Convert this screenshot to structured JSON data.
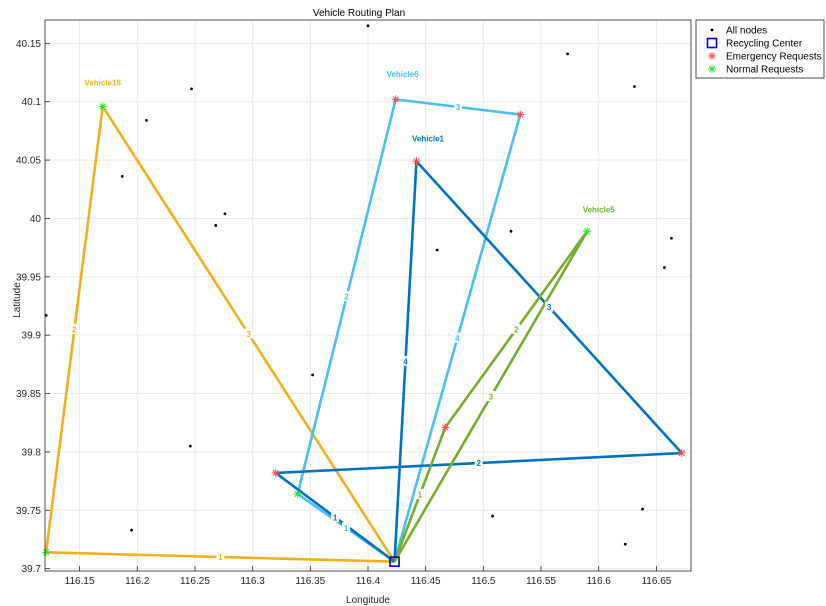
{
  "chart_data": {
    "type": "scatter",
    "title": "Vehicle Routing Plan",
    "xlabel": "Longitude",
    "ylabel": "Latitude",
    "xlim": [
      116.12,
      116.68
    ],
    "ylim": [
      39.698,
      40.17
    ],
    "xticks": [
      "116.15",
      "116.2",
      "116.25",
      "116.3",
      "116.35",
      "116.4",
      "116.45",
      "116.5",
      "116.55",
      "116.6",
      "116.65"
    ],
    "yticks": [
      "39.7",
      "39.75",
      "39.8",
      "39.85",
      "39.9",
      "39.95",
      "40",
      "40.05",
      "40.1",
      "40.15"
    ],
    "grid": true,
    "legend_position": "outside top-right",
    "legend": [
      {
        "label": "All nodes",
        "marker": "dot"
      },
      {
        "label": "Recycling Center",
        "marker": "square"
      },
      {
        "label": "Emergency Requests",
        "marker": "asterisk"
      },
      {
        "label": "Normal Requests",
        "marker": "asterisk"
      }
    ],
    "depot": {
      "x": 116.423,
      "y": 39.706
    },
    "all_nodes": [
      {
        "x": 116.121,
        "y": 39.917
      },
      {
        "x": 116.187,
        "y": 40.036
      },
      {
        "x": 116.208,
        "y": 40.084
      },
      {
        "x": 116.247,
        "y": 40.111
      },
      {
        "x": 116.268,
        "y": 39.994
      },
      {
        "x": 116.276,
        "y": 40.004
      },
      {
        "x": 116.4,
        "y": 40.165
      },
      {
        "x": 116.352,
        "y": 39.866
      },
      {
        "x": 116.246,
        "y": 39.805
      },
      {
        "x": 116.195,
        "y": 39.733
      },
      {
        "x": 116.46,
        "y": 39.973
      },
      {
        "x": 116.524,
        "y": 39.989
      },
      {
        "x": 116.508,
        "y": 39.745
      },
      {
        "x": 116.573,
        "y": 40.141
      },
      {
        "x": 116.631,
        "y": 40.113
      },
      {
        "x": 116.663,
        "y": 39.983
      },
      {
        "x": 116.657,
        "y": 39.958
      },
      {
        "x": 116.638,
        "y": 39.751
      },
      {
        "x": 116.623,
        "y": 39.721
      }
    ],
    "emergency_requests": [
      {
        "x": 116.424,
        "y": 40.102
      },
      {
        "x": 116.532,
        "y": 40.089
      },
      {
        "x": 116.442,
        "y": 40.049
      },
      {
        "x": 116.32,
        "y": 39.782
      },
      {
        "x": 116.672,
        "y": 39.799
      },
      {
        "x": 116.467,
        "y": 39.821
      }
    ],
    "normal_requests": [
      {
        "x": 116.17,
        "y": 40.096
      },
      {
        "x": 116.121,
        "y": 39.714
      },
      {
        "x": 116.59,
        "y": 39.989
      },
      {
        "x": 116.339,
        "y": 39.764
      }
    ],
    "routes": [
      {
        "name": "Vehicle18",
        "color": "#EDB120",
        "label_at": {
          "x": 116.17,
          "y": 40.114
        },
        "path": [
          {
            "x": 116.423,
            "y": 39.706
          },
          {
            "x": 116.17,
            "y": 40.096
          },
          {
            "x": 116.121,
            "y": 39.714
          },
          {
            "x": 116.423,
            "y": 39.706
          }
        ],
        "segment_labels": [
          "3",
          "2",
          "1"
        ]
      },
      {
        "name": "Vehicle6",
        "color": "#4DBEEE",
        "label_at": {
          "x": 116.43,
          "y": 40.121
        },
        "path": [
          {
            "x": 116.423,
            "y": 39.706
          },
          {
            "x": 116.339,
            "y": 39.764
          },
          {
            "x": 116.424,
            "y": 40.102
          },
          {
            "x": 116.532,
            "y": 40.089
          },
          {
            "x": 116.423,
            "y": 39.706
          }
        ],
        "segment_labels": [
          "1",
          "2",
          "3",
          "4"
        ]
      },
      {
        "name": "Vehicle1",
        "color": "#0072BD",
        "label_at": {
          "x": 116.452,
          "y": 40.066
        },
        "path": [
          {
            "x": 116.423,
            "y": 39.706
          },
          {
            "x": 116.442,
            "y": 40.049
          },
          {
            "x": 116.672,
            "y": 39.799
          },
          {
            "x": 116.32,
            "y": 39.782
          },
          {
            "x": 116.423,
            "y": 39.706
          }
        ],
        "segment_labels": [
          "4",
          "3",
          "2",
          "1"
        ]
      },
      {
        "name": "Vehicle5",
        "color": "#77AC30",
        "label_at": {
          "x": 116.6,
          "y": 40.005
        },
        "path": [
          {
            "x": 116.423,
            "y": 39.706
          },
          {
            "x": 116.467,
            "y": 39.821
          },
          {
            "x": 116.59,
            "y": 39.989
          },
          {
            "x": 116.423,
            "y": 39.706
          }
        ],
        "segment_labels": [
          "1",
          "2",
          "3"
        ]
      }
    ]
  }
}
